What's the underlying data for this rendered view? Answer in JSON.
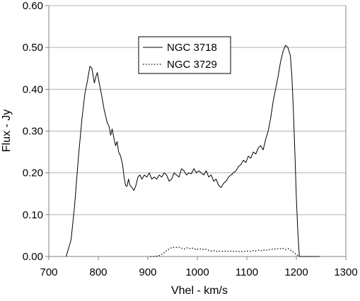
{
  "chart_data": {
    "type": "line",
    "title": "",
    "xlabel": "Vhel - km/s",
    "ylabel": "Flux - Jy",
    "xlim": [
      700,
      1300
    ],
    "ylim": [
      0,
      0.6
    ],
    "x_ticks": [
      700,
      800,
      900,
      1000,
      1100,
      1200,
      1300
    ],
    "y_ticks": [
      0.0,
      0.1,
      0.2,
      0.3,
      0.4,
      0.5,
      0.6
    ],
    "x_tick_labels": [
      "700",
      "800",
      "900",
      "1000",
      "1100",
      "1200",
      "1300"
    ],
    "y_tick_labels": [
      "0.00",
      "0.10",
      "0.20",
      "0.30",
      "0.40",
      "0.50",
      "0.60"
    ],
    "grid": "horizontal",
    "legend_position": "top-center",
    "colors": {
      "series": "#000000",
      "grid": "#b0b0b0",
      "axis": "#808080"
    },
    "series": [
      {
        "name": "NGC 3718",
        "style": "solid",
        "x": [
          735,
          745,
          752,
          760,
          767,
          773,
          778,
          783,
          787,
          792,
          795,
          798,
          801,
          806,
          812,
          818,
          822,
          825,
          828,
          832,
          835,
          838,
          841,
          845,
          849,
          852,
          855,
          858,
          861,
          864,
          868,
          872,
          876,
          880,
          884,
          888,
          893,
          898,
          903,
          908,
          913,
          918,
          923,
          928,
          933,
          938,
          943,
          948,
          953,
          958,
          963,
          968,
          973,
          978,
          983,
          988,
          993,
          998,
          1003,
          1008,
          1013,
          1018,
          1023,
          1028,
          1033,
          1038,
          1043,
          1048,
          1053,
          1058,
          1063,
          1068,
          1073,
          1078,
          1083,
          1088,
          1093,
          1098,
          1103,
          1108,
          1113,
          1118,
          1123,
          1128,
          1133,
          1138,
          1143,
          1148,
          1153,
          1158,
          1163,
          1168,
          1173,
          1178,
          1183,
          1188,
          1191,
          1194,
          1197,
          1200,
          1203,
          1206,
          1209,
          1212,
          1215,
          1218,
          1221,
          1225,
          1230,
          1236,
          1242,
          1247
        ],
        "y": [
          0.0,
          0.04,
          0.12,
          0.24,
          0.33,
          0.39,
          0.42,
          0.455,
          0.45,
          0.415,
          0.43,
          0.44,
          0.42,
          0.39,
          0.35,
          0.32,
          0.31,
          0.29,
          0.305,
          0.28,
          0.265,
          0.275,
          0.25,
          0.24,
          0.22,
          0.19,
          0.17,
          0.168,
          0.185,
          0.17,
          0.165,
          0.158,
          0.17,
          0.19,
          0.195,
          0.185,
          0.195,
          0.19,
          0.2,
          0.185,
          0.19,
          0.185,
          0.195,
          0.19,
          0.2,
          0.195,
          0.18,
          0.185,
          0.2,
          0.195,
          0.19,
          0.21,
          0.205,
          0.195,
          0.2,
          0.198,
          0.21,
          0.2,
          0.205,
          0.2,
          0.195,
          0.205,
          0.19,
          0.195,
          0.18,
          0.185,
          0.17,
          0.165,
          0.175,
          0.18,
          0.19,
          0.195,
          0.2,
          0.205,
          0.215,
          0.22,
          0.23,
          0.225,
          0.24,
          0.235,
          0.25,
          0.245,
          0.26,
          0.265,
          0.255,
          0.28,
          0.3,
          0.33,
          0.37,
          0.4,
          0.43,
          0.465,
          0.49,
          0.505,
          0.5,
          0.48,
          0.43,
          0.35,
          0.25,
          0.14,
          0.06,
          0.0,
          0.0,
          0.0,
          0.0,
          0.0,
          0.0,
          0.0,
          0.0,
          0.0,
          0.0,
          0.0
        ]
      },
      {
        "name": "NGC 3729",
        "style": "dotted",
        "x": [
          905,
          915,
          925,
          932,
          938,
          944,
          950,
          956,
          962,
          968,
          974,
          980,
          986,
          992,
          998,
          1004,
          1010,
          1016,
          1022,
          1028,
          1034,
          1040,
          1046,
          1052,
          1058,
          1064,
          1070,
          1076,
          1082,
          1088,
          1094,
          1100,
          1106,
          1112,
          1118,
          1124,
          1130,
          1136,
          1142,
          1148,
          1154,
          1160,
          1166,
          1172,
          1178,
          1184,
          1190,
          1196,
          1202,
          1205
        ],
        "y": [
          0.0,
          0.0,
          0.003,
          0.008,
          0.014,
          0.019,
          0.022,
          0.021,
          0.023,
          0.02,
          0.018,
          0.021,
          0.019,
          0.02,
          0.016,
          0.019,
          0.017,
          0.018,
          0.015,
          0.013,
          0.014,
          0.012,
          0.013,
          0.012,
          0.013,
          0.012,
          0.013,
          0.012,
          0.013,
          0.011,
          0.012,
          0.013,
          0.012,
          0.014,
          0.013,
          0.015,
          0.014,
          0.016,
          0.015,
          0.018,
          0.017,
          0.019,
          0.018,
          0.02,
          0.017,
          0.019,
          0.014,
          0.008,
          0.003,
          0.0
        ]
      }
    ]
  }
}
